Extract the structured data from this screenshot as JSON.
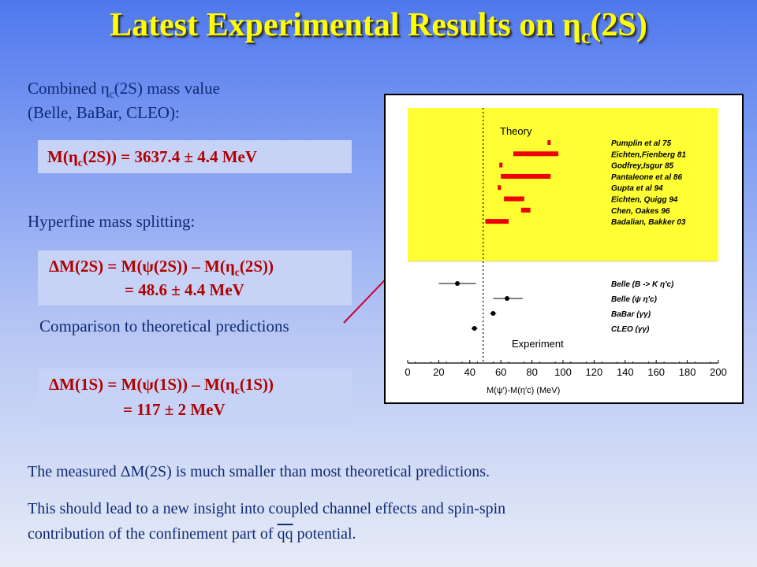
{
  "slide": {
    "title_main": "Latest Experimental Results on ",
    "title_eta": "η",
    "title_sub": "c",
    "title_tail": "(2S)",
    "combined_line1_pre": "Combined ",
    "combined_eta": "η",
    "combined_sub": "c",
    "combined_line1_post": "(2S) mass value",
    "combined_line2": "(Belle, BaBar, CLEO):",
    "mass_box": {
      "pre": "M(",
      "eta": "η",
      "sub": "c",
      "post": "(2S))  =  3637.4  ±  4.4  MeV"
    },
    "hyperfine_label": "Hyperfine mass splitting:",
    "split2s_box": {
      "line1_pre": "ΔM(2S)  =  M(ψ(2S)) – M(η",
      "line1_sub": "c",
      "line1_post": "(2S))",
      "line2": "=  48.6  ±  4.4  MeV"
    },
    "comparison_label": "Comparison to theoretical predictions",
    "split1s_box": {
      "line1_pre": "ΔM(1S)  =  M(ψ(1S)) – M(η",
      "line1_sub": "c",
      "line1_post": "(1S))",
      "line2": "=  117  ±  2  MeV"
    },
    "conclusion1": "The measured ΔM(2S) is much smaller than most theoretical predictions.",
    "conclusion2": "This should lead to a new insight into coupled channel effects and spin-spin",
    "conclusion3_pre": "contribution of the confinement part of ",
    "conclusion3_qq": "qq",
    "conclusion3_post": " potential."
  },
  "colors": {
    "title": "#ffff00",
    "box_bg": "#c6d3f6",
    "box_text": "#b00000",
    "body_text": "#0f2a73",
    "theory_band": "#ffff33",
    "theory_marks": "#ee0000"
  },
  "chart_data": {
    "type": "scatter",
    "xlabel": "M(ψ′)-M(η′c) (MeV)",
    "ylabel": "",
    "xlim": [
      0,
      200
    ],
    "x_ticks": [
      "0",
      "20",
      "40",
      "60",
      "80",
      "100",
      "120",
      "140",
      "160",
      "180",
      "200"
    ],
    "measured_line_x": 48.6,
    "theory_label": "Theory",
    "experiment_label": "Experiment",
    "theory": [
      {
        "name": "Pumplin et al 75",
        "x": [
          91
        ]
      },
      {
        "name": "Eichten,Fienberg 81",
        "x": [
          68,
          97
        ]
      },
      {
        "name": "Godfrey,Isgur 85",
        "x": [
          60
        ]
      },
      {
        "name": "Pantaleone et al 86",
        "x": [
          60,
          92
        ]
      },
      {
        "name": "Gupta et al 94",
        "x": [
          59
        ]
      },
      {
        "name": "Eichten, Quigg 94",
        "x": [
          62,
          75
        ]
      },
      {
        "name": "Chen, Oakes 96",
        "x": [
          73,
          79
        ]
      },
      {
        "name": "Badalian, Bakker 03",
        "x": [
          50,
          65
        ]
      }
    ],
    "experiment": [
      {
        "name": "Belle (B -> K η′c)",
        "x": 32,
        "err_minus": 12,
        "err_plus": 12
      },
      {
        "name": "Belle (ψ η′c)",
        "x": 64,
        "err_minus": 9,
        "err_plus": 10
      },
      {
        "name": "BaBar (γγ)",
        "x": 55,
        "err_minus": 2,
        "err_plus": 2
      },
      {
        "name": "CLEO (γγ)",
        "x": 43,
        "err_minus": 2,
        "err_plus": 2
      }
    ]
  }
}
